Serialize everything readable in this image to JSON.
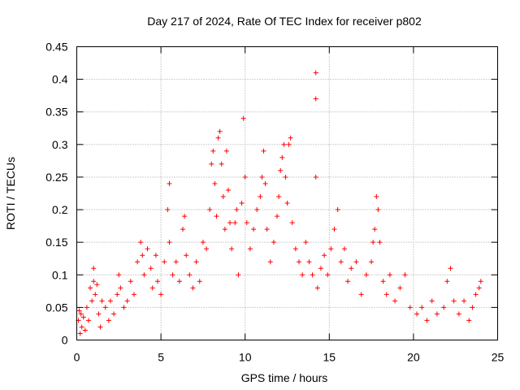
{
  "chart_data": {
    "type": "scatter",
    "title": "Day 217 of 2024, Rate Of TEC Index for receiver p802",
    "xlabel": "GPS time / hours",
    "ylabel": "ROTI / TECUs",
    "xlim": [
      0,
      25
    ],
    "ylim": [
      0,
      0.45
    ],
    "xticks": [
      0,
      5,
      10,
      15,
      20,
      25
    ],
    "yticks": [
      0,
      0.05,
      0.1,
      0.15,
      0.2,
      0.25,
      0.3,
      0.35,
      0.4,
      0.45
    ],
    "xtick_labels": [
      "0",
      "5",
      "10",
      "15",
      "20",
      "25"
    ],
    "ytick_labels": [
      "0",
      "0.05",
      "0.1",
      "0.15",
      "0.2",
      "0.25",
      "0.3",
      "0.35",
      "0.4",
      "0.45"
    ],
    "grid": true,
    "marker": "plus",
    "color": "#ff0000",
    "series": [
      {
        "points": [
          [
            0.1,
            0.03
          ],
          [
            0.15,
            0.045
          ],
          [
            0.2,
            0.01
          ],
          [
            0.25,
            0.04
          ],
          [
            0.3,
            0.02
          ],
          [
            0.4,
            0.035
          ],
          [
            0.5,
            0.015
          ],
          [
            0.6,
            0.05
          ],
          [
            0.7,
            0.03
          ],
          [
            0.8,
            0.08
          ],
          [
            0.9,
            0.06
          ],
          [
            1.0,
            0.11
          ],
          [
            1.0,
            0.09
          ],
          [
            1.1,
            0.07
          ],
          [
            1.2,
            0.085
          ],
          [
            1.3,
            0.04
          ],
          [
            1.4,
            0.02
          ],
          [
            1.5,
            0.06
          ],
          [
            1.7,
            0.05
          ],
          [
            1.9,
            0.03
          ],
          [
            2.0,
            0.06
          ],
          [
            2.2,
            0.04
          ],
          [
            2.4,
            0.07
          ],
          [
            2.5,
            0.1
          ],
          [
            2.6,
            0.08
          ],
          [
            2.8,
            0.05
          ],
          [
            3.0,
            0.06
          ],
          [
            3.2,
            0.09
          ],
          [
            3.4,
            0.07
          ],
          [
            3.6,
            0.12
          ],
          [
            3.8,
            0.15
          ],
          [
            3.9,
            0.13
          ],
          [
            4.0,
            0.1
          ],
          [
            4.2,
            0.14
          ],
          [
            4.4,
            0.11
          ],
          [
            4.5,
            0.08
          ],
          [
            4.7,
            0.13
          ],
          [
            4.8,
            0.09
          ],
          [
            5.0,
            0.07
          ],
          [
            5.2,
            0.12
          ],
          [
            5.4,
            0.2
          ],
          [
            5.5,
            0.24
          ],
          [
            5.5,
            0.15
          ],
          [
            5.7,
            0.1
          ],
          [
            5.9,
            0.12
          ],
          [
            6.1,
            0.09
          ],
          [
            6.3,
            0.17
          ],
          [
            6.4,
            0.19
          ],
          [
            6.5,
            0.13
          ],
          [
            6.7,
            0.1
          ],
          [
            6.9,
            0.08
          ],
          [
            7.1,
            0.12
          ],
          [
            7.3,
            0.09
          ],
          [
            7.5,
            0.15
          ],
          [
            7.7,
            0.14
          ],
          [
            7.9,
            0.2
          ],
          [
            8.0,
            0.27
          ],
          [
            8.1,
            0.29
          ],
          [
            8.2,
            0.24
          ],
          [
            8.3,
            0.19
          ],
          [
            8.4,
            0.31
          ],
          [
            8.5,
            0.32
          ],
          [
            8.6,
            0.27
          ],
          [
            8.7,
            0.22
          ],
          [
            8.8,
            0.17
          ],
          [
            8.9,
            0.29
          ],
          [
            9.0,
            0.23
          ],
          [
            9.1,
            0.18
          ],
          [
            9.2,
            0.14
          ],
          [
            9.4,
            0.18
          ],
          [
            9.5,
            0.2
          ],
          [
            9.6,
            0.1
          ],
          [
            9.8,
            0.21
          ],
          [
            9.9,
            0.34
          ],
          [
            10.0,
            0.25
          ],
          [
            10.1,
            0.18
          ],
          [
            10.3,
            0.14
          ],
          [
            10.5,
            0.17
          ],
          [
            10.7,
            0.2
          ],
          [
            10.9,
            0.22
          ],
          [
            11.0,
            0.25
          ],
          [
            11.1,
            0.29
          ],
          [
            11.2,
            0.24
          ],
          [
            11.3,
            0.17
          ],
          [
            11.5,
            0.12
          ],
          [
            11.7,
            0.15
          ],
          [
            11.9,
            0.19
          ],
          [
            12.0,
            0.22
          ],
          [
            12.1,
            0.26
          ],
          [
            12.2,
            0.28
          ],
          [
            12.3,
            0.3
          ],
          [
            12.4,
            0.25
          ],
          [
            12.5,
            0.21
          ],
          [
            12.6,
            0.3
          ],
          [
            12.7,
            0.31
          ],
          [
            12.8,
            0.18
          ],
          [
            13.0,
            0.14
          ],
          [
            13.2,
            0.12
          ],
          [
            13.4,
            0.1
          ],
          [
            13.6,
            0.15
          ],
          [
            13.8,
            0.12
          ],
          [
            14.0,
            0.1
          ],
          [
            14.2,
            0.41
          ],
          [
            14.2,
            0.37
          ],
          [
            14.2,
            0.25
          ],
          [
            14.3,
            0.08
          ],
          [
            14.5,
            0.11
          ],
          [
            14.7,
            0.13
          ],
          [
            14.9,
            0.1
          ],
          [
            15.1,
            0.14
          ],
          [
            15.3,
            0.17
          ],
          [
            15.5,
            0.2
          ],
          [
            15.7,
            0.12
          ],
          [
            15.9,
            0.14
          ],
          [
            16.1,
            0.09
          ],
          [
            16.3,
            0.11
          ],
          [
            16.6,
            0.12
          ],
          [
            16.9,
            0.07
          ],
          [
            17.2,
            0.1
          ],
          [
            17.5,
            0.12
          ],
          [
            17.6,
            0.15
          ],
          [
            17.7,
            0.17
          ],
          [
            17.8,
            0.22
          ],
          [
            17.9,
            0.2
          ],
          [
            18.0,
            0.15
          ],
          [
            18.2,
            0.09
          ],
          [
            18.4,
            0.07
          ],
          [
            18.6,
            0.1
          ],
          [
            18.9,
            0.06
          ],
          [
            19.2,
            0.08
          ],
          [
            19.5,
            0.1
          ],
          [
            19.8,
            0.05
          ],
          [
            20.2,
            0.04
          ],
          [
            20.5,
            0.05
          ],
          [
            20.8,
            0.03
          ],
          [
            21.1,
            0.06
          ],
          [
            21.4,
            0.04
          ],
          [
            21.8,
            0.05
          ],
          [
            22.0,
            0.09
          ],
          [
            22.2,
            0.11
          ],
          [
            22.4,
            0.06
          ],
          [
            22.7,
            0.04
          ],
          [
            23.0,
            0.06
          ],
          [
            23.3,
            0.03
          ],
          [
            23.5,
            0.05
          ],
          [
            23.7,
            0.07
          ],
          [
            23.9,
            0.08
          ],
          [
            24.0,
            0.09
          ]
        ]
      }
    ]
  }
}
